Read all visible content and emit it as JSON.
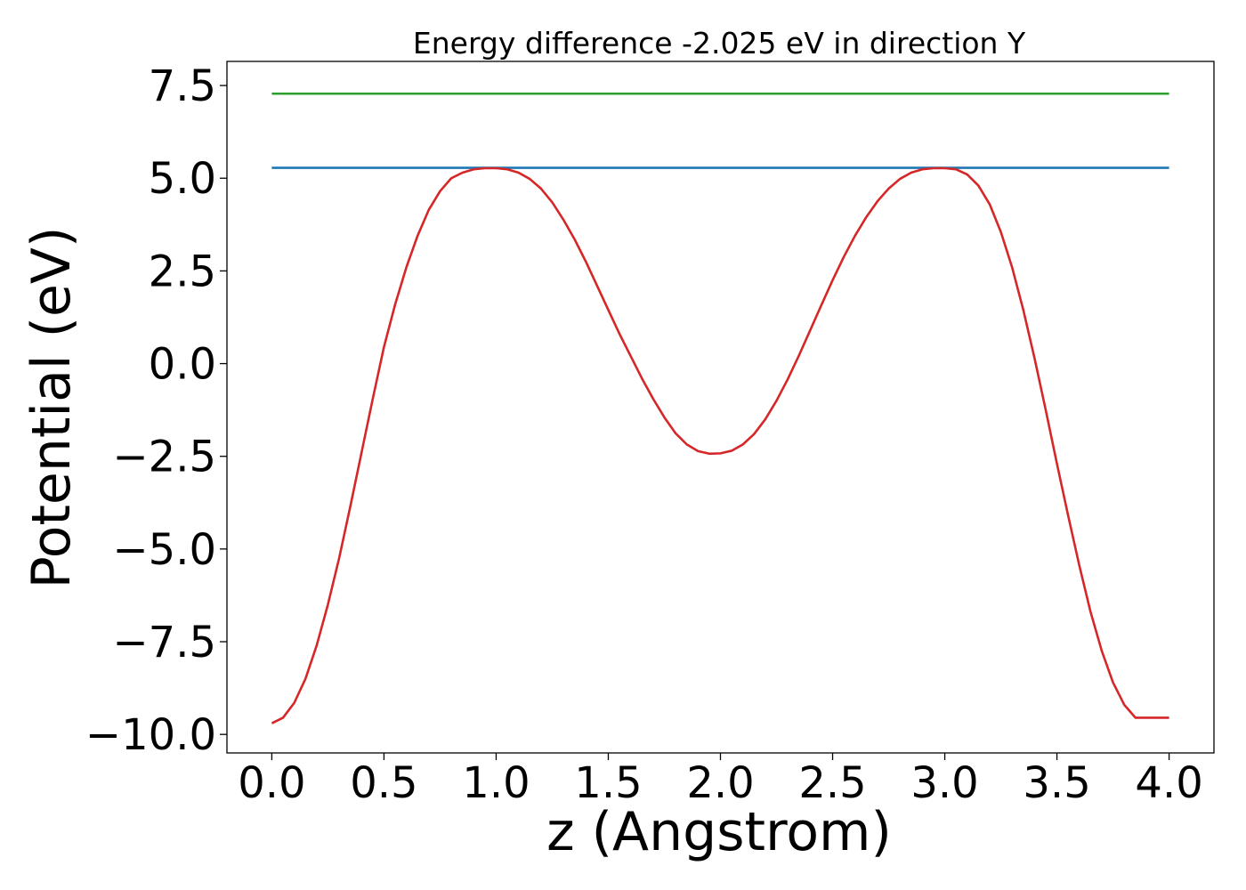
{
  "chart_data": {
    "type": "line",
    "title": "Energy difference -2.025 eV in direction Y",
    "xlabel": "z (Angstrom)",
    "ylabel": "Potential (eV)",
    "xlim": [
      -0.2,
      4.2
    ],
    "ylim": [
      -10.5,
      8.15
    ],
    "x_ticks": [
      0.0,
      0.5,
      1.0,
      1.5,
      2.0,
      2.5,
      3.0,
      3.5,
      4.0
    ],
    "x_tick_labels": [
      "0.0",
      "0.5",
      "1.0",
      "1.5",
      "2.0",
      "2.5",
      "3.0",
      "3.5",
      "4.0"
    ],
    "y_ticks": [
      -10.0,
      -7.5,
      -5.0,
      -2.5,
      0.0,
      2.5,
      5.0,
      7.5
    ],
    "y_tick_labels": [
      "−10.0",
      "−7.5",
      "−5.0",
      "−2.5",
      "0.0",
      "2.5",
      "5.0",
      "7.5"
    ],
    "grid": false,
    "series": [
      {
        "color": "#1f77b4",
        "x": [
          0.0,
          4.0
        ],
        "y": [
          5.28,
          5.28
        ]
      },
      {
        "color": "#2ca02c",
        "x": [
          0.0,
          4.0
        ],
        "y": [
          7.28,
          7.28
        ]
      },
      {
        "color": "#d62728",
        "x": [
          0.0,
          0.05,
          0.1,
          0.15,
          0.2,
          0.25,
          0.3,
          0.35,
          0.4,
          0.45,
          0.5,
          0.55,
          0.6,
          0.65,
          0.7,
          0.75,
          0.8,
          0.85,
          0.9,
          0.95,
          1.0,
          1.05,
          1.1,
          1.15,
          1.2,
          1.25,
          1.3,
          1.35,
          1.4,
          1.45,
          1.5,
          1.55,
          1.6,
          1.65,
          1.7,
          1.75,
          1.8,
          1.85,
          1.9,
          1.95,
          2.0,
          2.05,
          2.1,
          2.15,
          2.2,
          2.25,
          2.3,
          2.35,
          2.4,
          2.45,
          2.5,
          2.55,
          2.6,
          2.65,
          2.7,
          2.75,
          2.8,
          2.85,
          2.9,
          2.95,
          3.0,
          3.05,
          3.1,
          3.15,
          3.2,
          3.25,
          3.3,
          3.35,
          3.4,
          3.45,
          3.5,
          3.55,
          3.6,
          3.65,
          3.7,
          3.75,
          3.8,
          3.85,
          3.9,
          3.95,
          4.0
        ],
        "y": [
          -9.7,
          -9.55,
          -9.15,
          -8.5,
          -7.6,
          -6.5,
          -5.25,
          -3.85,
          -2.4,
          -0.95,
          0.45,
          1.6,
          2.6,
          3.45,
          4.15,
          4.65,
          5.0,
          5.15,
          5.24,
          5.27,
          5.27,
          5.24,
          5.15,
          4.98,
          4.72,
          4.35,
          3.88,
          3.35,
          2.75,
          2.1,
          1.45,
          0.8,
          0.2,
          -0.4,
          -0.95,
          -1.45,
          -1.88,
          -2.18,
          -2.36,
          -2.43,
          -2.42,
          -2.35,
          -2.18,
          -1.9,
          -1.5,
          -1.0,
          -0.42,
          0.22,
          0.9,
          1.58,
          2.25,
          2.88,
          3.45,
          3.95,
          4.38,
          4.72,
          4.98,
          5.15,
          5.24,
          5.27,
          5.27,
          5.24,
          5.1,
          4.8,
          4.3,
          3.55,
          2.6,
          1.45,
          0.15,
          -1.25,
          -2.7,
          -4.1,
          -5.45,
          -6.7,
          -7.75,
          -8.6,
          -9.2,
          -9.55,
          -9.55,
          -9.55,
          -9.55
        ]
      }
    ]
  }
}
